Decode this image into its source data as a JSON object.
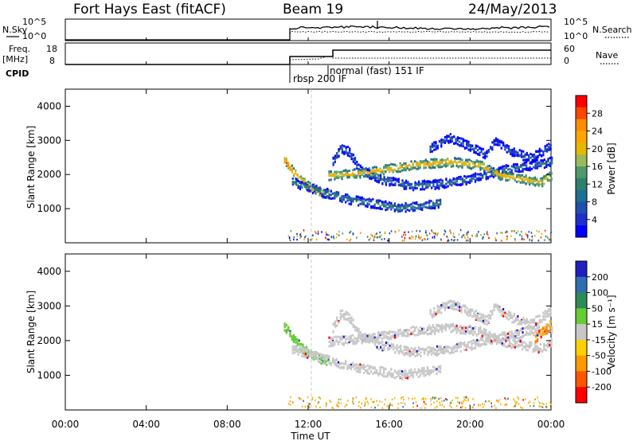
{
  "header": {
    "station": "Fort Hays East (fitACF)",
    "beam": "Beam 19",
    "date": "24/May/2013"
  },
  "summary_panels": {
    "noise": {
      "left_label": "N.Sky",
      "left_ticks": [
        "10^5",
        "10^0"
      ],
      "right_label": "N.Search",
      "right_ticks": [
        "10^5",
        "10^0"
      ]
    },
    "freq": {
      "left_label_1": "Freq.",
      "left_label_2": "[MHz]",
      "left_ticks": [
        "18",
        "8"
      ],
      "right_label": "Nave",
      "right_ticks": [
        "60",
        "0"
      ]
    },
    "cpid": {
      "label": "CPID",
      "modes": [
        "rbsp 200 IF",
        "normal (fast) 151 IF"
      ]
    }
  },
  "axes": {
    "x_ticks": [
      "00:00",
      "04:00",
      "08:00",
      "12:00",
      "16:00",
      "20:00",
      "00:00"
    ],
    "xlabel": "Time UT",
    "y_ticks": [
      "1000",
      "2000",
      "3000",
      "4000"
    ],
    "ylabel": "Slant Range [km]"
  },
  "colorbars": {
    "power": {
      "label": "Power [dB]",
      "ticks": [
        "28",
        "24",
        "20",
        "16",
        "12",
        "8",
        "4"
      ],
      "colors": [
        "#ff0000",
        "#ff4500",
        "#ff8c00",
        "#ffa500",
        "#e6b800",
        "#9bbb59",
        "#4f9a6a",
        "#2f7f6f",
        "#1f6f8f",
        "#1f4faf",
        "#1e2fd0",
        "#0000ff"
      ]
    },
    "velocity": {
      "label": "Velocity [m s⁻¹]",
      "ticks": [
        "200",
        "100",
        "50",
        "15",
        "-15",
        "-50",
        "-100",
        "-200"
      ],
      "colors": [
        "#1f1fc0",
        "#2f6fb0",
        "#2e8b57",
        "#66cc33",
        "#c8c8c8",
        "#ffd000",
        "#ff9900",
        "#ff5500",
        "#ff0000"
      ]
    }
  },
  "chart_data": [
    {
      "type": "heatmap",
      "panel": "power",
      "x_unit": "hours UT",
      "xlim": [
        0,
        24
      ],
      "ylim": [
        0,
        4500
      ],
      "ylabel": "Slant Range [km]",
      "colorbar_label": "Power [dB]",
      "traces": [
        {
          "points": [
            [
              10.8,
              2450
            ],
            [
              11.2,
              2150
            ],
            [
              11.6,
              1850
            ],
            [
              12.1,
              1650
            ],
            [
              12.6,
              1500
            ],
            [
              13.0,
              1450
            ]
          ],
          "value": 25
        },
        {
          "points": [
            [
              11.2,
              1800
            ],
            [
              12.5,
              1550
            ],
            [
              14.0,
              1300
            ],
            [
              15.5,
              1150
            ],
            [
              16.5,
              1050
            ],
            [
              17.5,
              1100
            ],
            [
              18.5,
              1200
            ]
          ],
          "value": 12
        },
        {
          "points": [
            [
              13.2,
              2400
            ],
            [
              13.6,
              2800
            ],
            [
              14.0,
              2700
            ],
            [
              14.5,
              2200
            ],
            [
              15.5,
              1900
            ],
            [
              17.0,
              1700
            ],
            [
              18.5,
              1750
            ],
            [
              20.0,
              1900
            ],
            [
              21.5,
              2150
            ],
            [
              23.0,
              2300
            ],
            [
              24.0,
              2400
            ]
          ],
          "value": 10
        },
        {
          "points": [
            [
              13.0,
              2000
            ],
            [
              15.0,
              2100
            ],
            [
              17.0,
              2300
            ],
            [
              19.0,
              2400
            ],
            [
              20.5,
              2300
            ],
            [
              21.5,
              2000
            ],
            [
              22.5,
              1900
            ],
            [
              23.5,
              1800
            ],
            [
              24.0,
              2000
            ]
          ],
          "value": 22
        },
        {
          "points": [
            [
              18.0,
              2800
            ],
            [
              19.0,
              3100
            ],
            [
              19.8,
              2900
            ],
            [
              20.8,
              2600
            ],
            [
              21.2,
              3000
            ],
            [
              22.0,
              2700
            ],
            [
              23.0,
              2500
            ],
            [
              24.0,
              2900
            ]
          ],
          "value": 8
        }
      ]
    },
    {
      "type": "heatmap",
      "panel": "velocity",
      "x_unit": "hours UT",
      "xlim": [
        0,
        24
      ],
      "ylim": [
        0,
        4500
      ],
      "ylabel": "Slant Range [km]",
      "colorbar_label": "Velocity [m s⁻¹]",
      "traces": [
        {
          "points": [
            [
              10.8,
              2450
            ],
            [
              11.2,
              2150
            ],
            [
              11.6,
              1850
            ],
            [
              12.1,
              1650
            ],
            [
              12.6,
              1500
            ],
            [
              13.0,
              1450
            ]
          ],
          "value": 60
        },
        {
          "points": [
            [
              11.2,
              1800
            ],
            [
              12.5,
              1550
            ],
            [
              14.0,
              1300
            ],
            [
              15.5,
              1150
            ],
            [
              16.5,
              1050
            ],
            [
              17.5,
              1100
            ],
            [
              18.5,
              1200
            ]
          ],
          "value": 0
        },
        {
          "points": [
            [
              13.2,
              2400
            ],
            [
              13.6,
              2800
            ],
            [
              14.0,
              2700
            ],
            [
              14.5,
              2200
            ],
            [
              15.5,
              1900
            ],
            [
              17.0,
              1700
            ],
            [
              18.5,
              1750
            ],
            [
              20.0,
              1900
            ],
            [
              21.5,
              2150
            ],
            [
              23.0,
              2300
            ],
            [
              24.0,
              2400
            ]
          ],
          "value": 0
        },
        {
          "points": [
            [
              13.0,
              2000
            ],
            [
              15.0,
              2100
            ],
            [
              17.0,
              2300
            ],
            [
              19.0,
              2400
            ],
            [
              20.5,
              2300
            ],
            [
              21.5,
              2000
            ],
            [
              22.5,
              1900
            ],
            [
              23.5,
              1800
            ],
            [
              24.0,
              2000
            ]
          ],
          "value": 0
        },
        {
          "points": [
            [
              18.0,
              2800
            ],
            [
              19.0,
              3100
            ],
            [
              19.8,
              2900
            ],
            [
              20.8,
              2600
            ],
            [
              21.2,
              3000
            ],
            [
              22.0,
              2700
            ],
            [
              23.0,
              2500
            ],
            [
              24.0,
              2900
            ]
          ],
          "value": 0
        },
        {
          "points": [
            [
              23.2,
              2100
            ],
            [
              23.6,
              2300
            ],
            [
              24.0,
              2500
            ]
          ],
          "value": -60
        }
      ]
    }
  ]
}
